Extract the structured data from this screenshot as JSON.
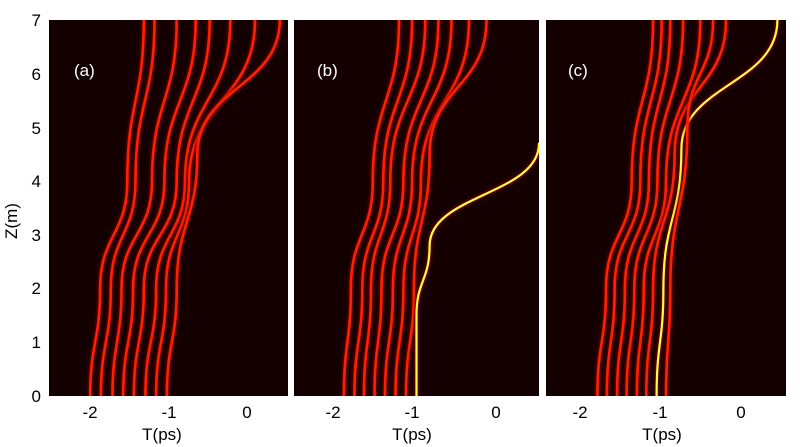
{
  "chart_data": {
    "type": "heatmap",
    "colormap": [
      "#000000",
      "#8b0000",
      "#ff2000",
      "#ffff40"
    ],
    "background": "#140000",
    "ylabel": "Z(m)",
    "yticks": [
      "0",
      "1",
      "2",
      "3",
      "4",
      "5",
      "6",
      "7"
    ],
    "ylim": [
      0,
      7
    ],
    "panels": [
      {
        "label": "(a)",
        "xlabel": "T(ps)",
        "xticks": [
          "-2",
          "-1",
          "0"
        ],
        "xlim": [
          -2.5,
          0.4
        ],
        "pulse_count": 8,
        "start_times_ps": [
          -2.0,
          -1.87,
          -1.73,
          -1.6,
          -1.47,
          -1.33,
          -1.2,
          -1.07
        ],
        "features": "all eight pulses tilt and collide near Z = 2.5–4.5 m; several bright traces exit toward T ≈ -0.3 to 0.3 ps",
        "traces": [
          {
            "id": "a1",
            "points": [
              [
                -2.0,
                0
              ],
              [
                -1.88,
                2
              ],
              [
                -1.55,
                4
              ],
              [
                -1.35,
                7
              ]
            ]
          },
          {
            "id": "a2",
            "points": [
              [
                -1.87,
                0
              ],
              [
                -1.75,
                2
              ],
              [
                -1.45,
                4
              ],
              [
                -1.22,
                7
              ]
            ]
          },
          {
            "id": "a3",
            "points": [
              [
                -1.73,
                0
              ],
              [
                -1.62,
                2
              ],
              [
                -1.25,
                4
              ],
              [
                -0.95,
                7
              ]
            ]
          },
          {
            "id": "a4",
            "points": [
              [
                -1.6,
                0
              ],
              [
                -1.48,
                2
              ],
              [
                -1.1,
                4
              ],
              [
                -0.72,
                7
              ]
            ]
          },
          {
            "id": "a5",
            "points": [
              [
                -1.47,
                0
              ],
              [
                -1.35,
                2
              ],
              [
                -0.95,
                4
              ],
              [
                -0.55,
                7
              ]
            ]
          },
          {
            "id": "a6",
            "points": [
              [
                -1.33,
                0
              ],
              [
                -1.2,
                2
              ],
              [
                -0.85,
                4
              ],
              [
                -0.3,
                7
              ]
            ]
          },
          {
            "id": "a7",
            "points": [
              [
                -1.2,
                0
              ],
              [
                -1.08,
                2
              ],
              [
                -0.8,
                4
              ],
              [
                0.0,
                7
              ]
            ]
          },
          {
            "id": "a8",
            "points": [
              [
                -1.07,
                0
              ],
              [
                -0.95,
                2
              ],
              [
                -0.7,
                4.5
              ],
              [
                0.3,
                7
              ]
            ]
          }
        ]
      },
      {
        "label": "(b)",
        "xlabel": "T(ps)",
        "xticks": [
          "-2",
          "-1",
          "0"
        ],
        "xlim": [
          -2.4,
          0.4
        ],
        "pulse_count": 8,
        "start_times_ps": [
          -1.83,
          -1.71,
          -1.6,
          -1.48,
          -1.36,
          -1.24,
          -1.12,
          -1.0
        ],
        "features": "one pulse accelerates away from the bundle near Z ≈ 2 m and exits the right edge near Z ≈ 4.7 m",
        "traces": [
          {
            "id": "b1",
            "points": [
              [
                -1.83,
                0
              ],
              [
                -1.75,
                2
              ],
              [
                -1.5,
                4
              ],
              [
                -1.2,
                7
              ]
            ]
          },
          {
            "id": "b2",
            "points": [
              [
                -1.71,
                0
              ],
              [
                -1.62,
                2
              ],
              [
                -1.38,
                4
              ],
              [
                -1.05,
                7
              ]
            ]
          },
          {
            "id": "b3",
            "points": [
              [
                -1.6,
                0
              ],
              [
                -1.52,
                2
              ],
              [
                -1.3,
                4
              ],
              [
                -0.9,
                7
              ]
            ]
          },
          {
            "id": "b4",
            "points": [
              [
                -1.48,
                0
              ],
              [
                -1.4,
                2
              ],
              [
                -1.15,
                4
              ],
              [
                -0.75,
                7
              ]
            ]
          },
          {
            "id": "b5",
            "points": [
              [
                -1.36,
                0
              ],
              [
                -1.27,
                2
              ],
              [
                -1.05,
                4
              ],
              [
                -0.6,
                7
              ]
            ]
          },
          {
            "id": "b6",
            "points": [
              [
                -1.24,
                0
              ],
              [
                -1.15,
                2
              ],
              [
                -0.95,
                4
              ],
              [
                -0.4,
                7
              ]
            ]
          },
          {
            "id": "b7",
            "points": [
              [
                -1.12,
                0
              ],
              [
                -1.03,
                2
              ],
              [
                -0.85,
                4.5
              ],
              [
                -0.2,
                7
              ]
            ]
          },
          {
            "id": "b8",
            "points": [
              [
                -1.0,
                0
              ],
              [
                -1.0,
                1.5
              ],
              [
                -0.85,
                2.8
              ],
              [
                0.4,
                4.7
              ]
            ],
            "bright": true
          }
        ]
      },
      {
        "label": "(c)",
        "xlabel": "T(ps)",
        "xticks": [
          "-2",
          "-1",
          "0"
        ],
        "xlim": [
          -2.4,
          0.4
        ],
        "pulse_count": 8,
        "start_times_ps": [
          -1.8,
          -1.69,
          -1.57,
          -1.46,
          -1.34,
          -1.23,
          -1.11,
          -1.0
        ],
        "features": "faint dispersive wave emitted near Z ≈ 0–1.5 m toward positive T; one bright trace crosses the bundle and exits near T ≈ 0.3 ps at Z = 7 m",
        "traces": [
          {
            "id": "c1",
            "points": [
              [
                -1.8,
                0
              ],
              [
                -1.7,
                2
              ],
              [
                -1.4,
                4
              ],
              [
                -1.15,
                7
              ]
            ]
          },
          {
            "id": "c2",
            "points": [
              [
                -1.69,
                0
              ],
              [
                -1.6,
                2
              ],
              [
                -1.3,
                4
              ],
              [
                -1.05,
                7
              ]
            ]
          },
          {
            "id": "c3",
            "points": [
              [
                -1.57,
                0
              ],
              [
                -1.48,
                2
              ],
              [
                -1.2,
                4
              ],
              [
                -0.95,
                7
              ]
            ]
          },
          {
            "id": "c4",
            "points": [
              [
                -1.46,
                0
              ],
              [
                -1.37,
                2
              ],
              [
                -1.1,
                4
              ],
              [
                -0.8,
                7
              ]
            ]
          },
          {
            "id": "c5",
            "points": [
              [
                -1.34,
                0
              ],
              [
                -1.26,
                2
              ],
              [
                -1.0,
                4
              ],
              [
                -0.6,
                7
              ]
            ]
          },
          {
            "id": "c6",
            "points": [
              [
                -1.23,
                0
              ],
              [
                -1.15,
                2
              ],
              [
                -0.9,
                4.5
              ],
              [
                -0.3,
                7
              ]
            ]
          },
          {
            "id": "c7",
            "points": [
              [
                -1.11,
                0
              ],
              [
                -1.03,
                2
              ],
              [
                -0.82,
                4.6
              ],
              [
                0.3,
                7
              ]
            ],
            "bright": true
          },
          {
            "id": "c8",
            "points": [
              [
                -1.0,
                0
              ],
              [
                -0.95,
                2
              ],
              [
                -0.75,
                5
              ],
              [
                -0.45,
                7
              ]
            ]
          }
        ]
      }
    ]
  }
}
